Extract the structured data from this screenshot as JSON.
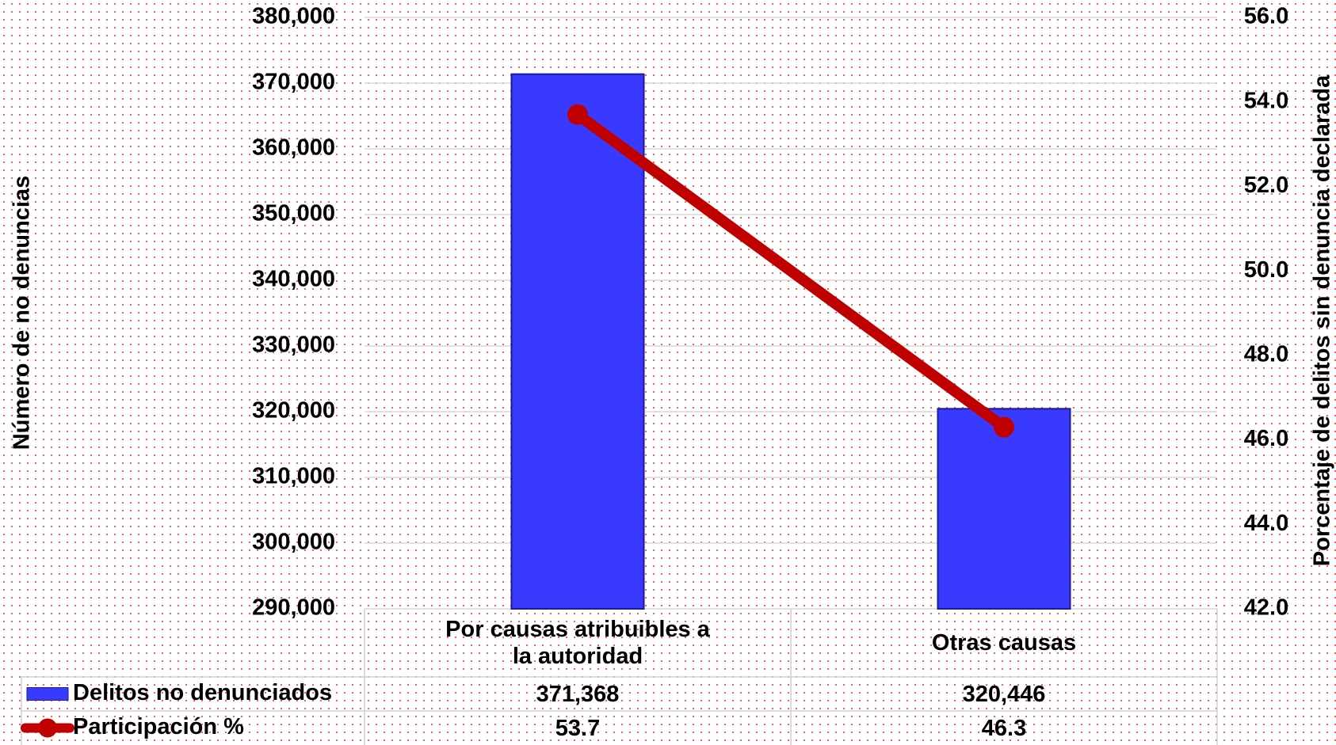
{
  "chart_data": {
    "type": "bar",
    "categories": [
      "Por causas atribuibles a la autoridad",
      "Otras causas"
    ],
    "series": [
      {
        "name": "Delitos no denunciados",
        "color": "#3a3aff",
        "values": [
          371368,
          320446
        ],
        "value_labels": [
          "371,368",
          "320,446"
        ]
      },
      {
        "name": "Participación %",
        "color": "#c00000",
        "type": "line",
        "axis": "y2",
        "values": [
          53.7,
          46.3
        ]
      }
    ],
    "ylabel": "Número de no denuncias",
    "y2label": "Porcentaje de delitos sin denuncia declarada",
    "ylim": [
      290000,
      380000
    ],
    "yticks": [
      {
        "value": 290000,
        "label": "290,000"
      },
      {
        "value": 300000,
        "label": "300,000"
      },
      {
        "value": 310000,
        "label": "310,000"
      },
      {
        "value": 320000,
        "label": "320,000"
      },
      {
        "value": 330000,
        "label": "330,000"
      },
      {
        "value": 340000,
        "label": "340,000"
      },
      {
        "value": 350000,
        "label": "350,000"
      },
      {
        "value": 360000,
        "label": "360,000"
      },
      {
        "value": 370000,
        "label": "370,000"
      },
      {
        "value": 380000,
        "label": "380,000"
      }
    ],
    "y2lim": [
      42,
      56
    ],
    "y2ticks": [
      {
        "value": 42,
        "label": "42.0"
      },
      {
        "value": 44,
        "label": "44.0"
      },
      {
        "value": 46,
        "label": "46.0"
      },
      {
        "value": 48,
        "label": "48.0"
      },
      {
        "value": 50,
        "label": "50.0"
      },
      {
        "value": 52,
        "label": "52.0"
      },
      {
        "value": 54,
        "label": "54.0"
      },
      {
        "value": 56,
        "label": "56.0"
      }
    ],
    "grid": true,
    "data_table": true
  }
}
